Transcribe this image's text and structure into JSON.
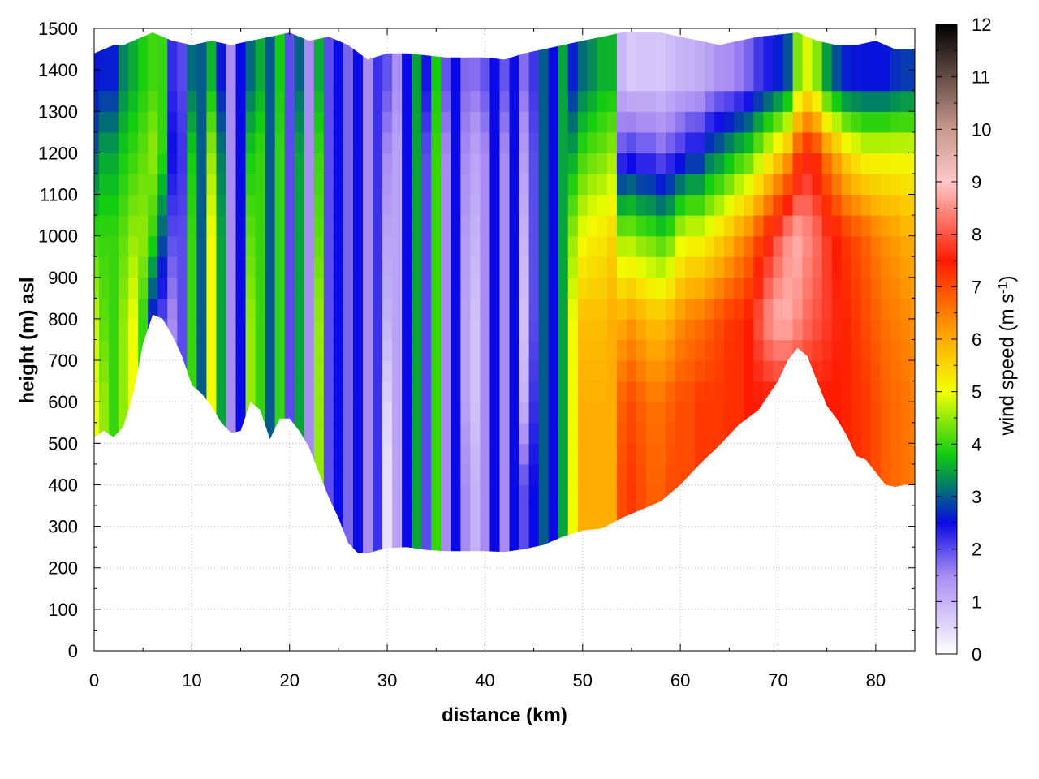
{
  "chart_data": {
    "type": "heatmap",
    "title": "",
    "xlabel": "distance (km)",
    "ylabel": "height (m) asl",
    "xlim": [
      0,
      84
    ],
    "ylim": [
      0,
      1500
    ],
    "x_ticks": [
      0,
      10,
      20,
      30,
      40,
      50,
      60,
      70,
      80
    ],
    "y_ticks": [
      0,
      100,
      200,
      300,
      400,
      500,
      600,
      700,
      800,
      900,
      1000,
      1100,
      1200,
      1300,
      1400,
      1500
    ],
    "grid": true,
    "colorbar": {
      "label": "wind speed (m s",
      "label_sup": "-1",
      "label_close": ")",
      "range": [
        0,
        12
      ],
      "ticks": [
        0,
        1,
        2,
        3,
        4,
        5,
        6,
        7,
        8,
        9,
        10,
        11,
        12
      ],
      "palette": [
        {
          "v": 0,
          "color": "#ffffff"
        },
        {
          "v": 1.5,
          "color": "#a98cf2"
        },
        {
          "v": 2.5,
          "color": "#0a0ae6"
        },
        {
          "v": 3.2,
          "color": "#007a6a"
        },
        {
          "v": 3.8,
          "color": "#11cc11"
        },
        {
          "v": 5,
          "color": "#f2ff00"
        },
        {
          "v": 6,
          "color": "#ffae00"
        },
        {
          "v": 7.5,
          "color": "#ff1a00"
        },
        {
          "v": 9,
          "color": "#ffc8c8"
        },
        {
          "v": 10,
          "color": "#c89a8c"
        },
        {
          "v": 12,
          "color": "#000000"
        }
      ]
    },
    "terrain": {
      "x": [
        0,
        1,
        2,
        3,
        4,
        5,
        6,
        7,
        8,
        9,
        10,
        11,
        12,
        13,
        14,
        15,
        16,
        17,
        18,
        19,
        20,
        21,
        22,
        23,
        24,
        25,
        26,
        27,
        28,
        30,
        32,
        34,
        36,
        38,
        40,
        42,
        44,
        46,
        48,
        50,
        52,
        54,
        56,
        58,
        60,
        62,
        64,
        66,
        68,
        70,
        71,
        72,
        73,
        74,
        75,
        76,
        77,
        78,
        79,
        80,
        81,
        82,
        83,
        84
      ],
      "y": [
        515,
        530,
        515,
        540,
        620,
        740,
        810,
        800,
        760,
        710,
        640,
        620,
        590,
        550,
        525,
        530,
        600,
        580,
        510,
        560,
        560,
        530,
        490,
        430,
        370,
        320,
        260,
        235,
        235,
        248,
        250,
        243,
        240,
        240,
        240,
        238,
        245,
        255,
        275,
        290,
        295,
        320,
        340,
        360,
        400,
        450,
        495,
        545,
        580,
        650,
        700,
        730,
        710,
        650,
        590,
        560,
        520,
        470,
        460,
        430,
        400,
        395,
        400,
        400
      ]
    },
    "top": {
      "x": [
        0,
        1,
        2,
        3,
        4,
        5,
        6,
        7,
        8,
        10,
        12,
        14,
        16,
        18,
        20,
        22,
        24,
        26,
        28,
        30,
        32,
        34,
        36,
        38,
        40,
        42,
        44,
        46,
        48,
        50,
        52,
        54,
        56,
        58,
        60,
        62,
        64,
        66,
        68,
        70,
        72,
        74,
        76,
        78,
        80,
        82,
        84
      ],
      "y": [
        1440,
        1450,
        1460,
        1460,
        1470,
        1480,
        1490,
        1480,
        1470,
        1460,
        1470,
        1460,
        1470,
        1480,
        1490,
        1470,
        1480,
        1460,
        1425,
        1440,
        1440,
        1435,
        1430,
        1430,
        1430,
        1425,
        1440,
        1450,
        1460,
        1470,
        1480,
        1490,
        1490,
        1490,
        1480,
        1470,
        1460,
        1470,
        1480,
        1485,
        1490,
        1470,
        1460,
        1460,
        1470,
        1450,
        1450
      ]
    },
    "wind_speed_columns": {
      "x": [
        0,
        1,
        2,
        3,
        4,
        5,
        6,
        7,
        8,
        9,
        10,
        11,
        12,
        13,
        14,
        15,
        16,
        17,
        18,
        19,
        20,
        21,
        22,
        23,
        24,
        25,
        26,
        27,
        28,
        29,
        30,
        31,
        32,
        33,
        34,
        35,
        36,
        37,
        38,
        39,
        40,
        41,
        42,
        43,
        44,
        45,
        46,
        47,
        48,
        49,
        50,
        51,
        52,
        53,
        54,
        55,
        56,
        57,
        58,
        59,
        60,
        61,
        62,
        63,
        64,
        65,
        66,
        67,
        68,
        69,
        70,
        71,
        72,
        73,
        74,
        75,
        76,
        77,
        78,
        79,
        80,
        81,
        82,
        83,
        84
      ],
      "levels_m": [
        200,
        400,
        600,
        800,
        1000,
        1200,
        1400
      ],
      "speed": [
        [
          5,
          5,
          5,
          4.8,
          4,
          3,
          2.5
        ],
        [
          4.5,
          4.5,
          4.5,
          4.2,
          4,
          3.5,
          2.5
        ],
        [
          4,
          4,
          4,
          4,
          4,
          3.5,
          2.5
        ],
        [
          4.5,
          4.5,
          4.5,
          4.5,
          4.2,
          3.8,
          3.2
        ],
        [
          5,
          5,
          5,
          5,
          4.5,
          4,
          3.5
        ],
        [
          4,
          4,
          4,
          4,
          4.5,
          4.2,
          3.8
        ],
        [
          2.5,
          2.5,
          2.5,
          2.5,
          4,
          4.5,
          4
        ],
        [
          2,
          2,
          2,
          2,
          3,
          4,
          4
        ],
        [
          1.5,
          1.5,
          1.5,
          1.5,
          2,
          2.5,
          2.2
        ],
        [
          2,
          2,
          2,
          2,
          2,
          2.2,
          2
        ],
        [
          4,
          4,
          4,
          4,
          4,
          3.8,
          3
        ],
        [
          3,
          3,
          3,
          3,
          3,
          3,
          3
        ],
        [
          5,
          5,
          5,
          5,
          5,
          4.5,
          3.5
        ],
        [
          3.5,
          3.5,
          3.5,
          3.5,
          3.5,
          3.2,
          2.5
        ],
        [
          1.5,
          1.5,
          1.5,
          1.5,
          1.5,
          1.5,
          1.5
        ],
        [
          2.5,
          2.5,
          2.5,
          2.5,
          2.5,
          2.5,
          2.5
        ],
        [
          4.5,
          4.5,
          4.5,
          4.5,
          4.2,
          3.8,
          3
        ],
        [
          4,
          4,
          4,
          4,
          4,
          4,
          3.5
        ],
        [
          3,
          3,
          3,
          3,
          3,
          3,
          3
        ],
        [
          4,
          4,
          4,
          4,
          4,
          4,
          3.8
        ],
        [
          2,
          2,
          2,
          2,
          2,
          2,
          2
        ],
        [
          3.5,
          3.5,
          3.5,
          3.5,
          3.5,
          3.5,
          3
        ],
        [
          1.5,
          1.5,
          1.5,
          1.5,
          1.5,
          1.5,
          1.5
        ],
        [
          4.5,
          4.5,
          4.5,
          4.5,
          4.2,
          4,
          3.5
        ],
        [
          2,
          2,
          2,
          2,
          2,
          2,
          2
        ],
        [
          2.5,
          2.5,
          2.5,
          2.5,
          2.5,
          2.5,
          2.5
        ],
        [
          1.8,
          1.8,
          1.8,
          1.8,
          1.8,
          1.8,
          1.8
        ],
        [
          2.5,
          2.5,
          2.5,
          2.5,
          2.5,
          2.5,
          2.5
        ],
        [
          1.5,
          1.5,
          1.5,
          1.5,
          1.5,
          1.5,
          1.5
        ],
        [
          2.2,
          2.2,
          2.2,
          2.2,
          2.2,
          2.2,
          2.2
        ],
        [
          0.4,
          0.4,
          0.6,
          1,
          1.2,
          1.5,
          2
        ],
        [
          1.2,
          1.2,
          1.2,
          1.2,
          1.2,
          1.2,
          1.5
        ],
        [
          2.5,
          2.5,
          2.5,
          2.5,
          2.5,
          2.5,
          2.5
        ],
        [
          3.5,
          3.5,
          3.5,
          3.5,
          3.5,
          3.5,
          3.5
        ],
        [
          2,
          2,
          2,
          2,
          2,
          2,
          2.5
        ],
        [
          4,
          4,
          4,
          4,
          4,
          4,
          3.8
        ],
        [
          1.5,
          1.5,
          1.5,
          1.5,
          1.5,
          1.5,
          2
        ],
        [
          2.5,
          2.5,
          2.5,
          2.5,
          2.5,
          2.5,
          2.5
        ],
        [
          1.5,
          1.5,
          1.2,
          1.2,
          1.3,
          1.5,
          1.8
        ],
        [
          1,
          1,
          0.8,
          0.8,
          1,
          1.2,
          1.8
        ],
        [
          1.5,
          1.5,
          1.5,
          1.5,
          1.5,
          1.5,
          2
        ],
        [
          2.5,
          2.5,
          2.5,
          2.5,
          2.5,
          2.5,
          2.5
        ],
        [
          1.5,
          1.5,
          1.5,
          1.5,
          1.5,
          1.5,
          2
        ],
        [
          2.5,
          2.5,
          2.5,
          2.5,
          2.5,
          2.5,
          2.5
        ],
        [
          2,
          2,
          1,
          0.8,
          1,
          1.3,
          1.8
        ],
        [
          2.5,
          2.5,
          2.2,
          2,
          2,
          2,
          2.2
        ],
        [
          3,
          3,
          3,
          3,
          3,
          3,
          3
        ],
        [
          2.5,
          2.5,
          2.5,
          2.5,
          2.5,
          2.5,
          2.5
        ],
        [
          3.5,
          3.5,
          3.5,
          3.5,
          3.5,
          3.5,
          3.5
        ],
        [
          5,
          5,
          5,
          5,
          4.5,
          3.5,
          2.5
        ],
        [
          6,
          6,
          6,
          5.8,
          5,
          4,
          3
        ],
        [
          6,
          6,
          6,
          5.8,
          5.2,
          4.2,
          3.2
        ],
        [
          6,
          6,
          6,
          5.8,
          5.3,
          4.3,
          3.5
        ],
        [
          6,
          6,
          6,
          6,
          5.5,
          4.5,
          3.5
        ],
        [
          7,
          7,
          6.8,
          6,
          4.5,
          2,
          0.8
        ],
        [
          7.2,
          7.2,
          7,
          6.2,
          4.5,
          2.2,
          0.5
        ],
        [
          7,
          7,
          6.8,
          6,
          4.3,
          2,
          0.6
        ],
        [
          6.8,
          6.8,
          6.6,
          5.8,
          4.2,
          2,
          0.6
        ],
        [
          6.8,
          6.8,
          6.6,
          5.8,
          4,
          1.8,
          0.6
        ],
        [
          7,
          7,
          6.8,
          6,
          4.2,
          2,
          0.7
        ],
        [
          7,
          7,
          7,
          6.3,
          4.8,
          2.2,
          0.8
        ],
        [
          7,
          7,
          7,
          6.5,
          5,
          2.5,
          0.8
        ],
        [
          7.2,
          7.2,
          7.2,
          6.6,
          5,
          2.5,
          0.9
        ],
        [
          7.2,
          7.2,
          7.2,
          6.8,
          5.2,
          3,
          1
        ],
        [
          7.2,
          7.2,
          7.2,
          7,
          5.5,
          3.2,
          1.2
        ],
        [
          7.3,
          7.3,
          7.3,
          7.2,
          5.8,
          3.5,
          1.2
        ],
        [
          7.3,
          7.3,
          7.3,
          7.3,
          6.2,
          3.8,
          1.3
        ],
        [
          7.5,
          7.5,
          7.5,
          7.5,
          6.5,
          4,
          1.5
        ],
        [
          7.5,
          7.5,
          7.5,
          8,
          7,
          4.5,
          1.8
        ],
        [
          7.5,
          7.5,
          7.5,
          8.5,
          7.5,
          5,
          2
        ],
        [
          7.5,
          7.5,
          7.5,
          8.8,
          8,
          5.5,
          2.2
        ],
        [
          7.5,
          7.5,
          7.5,
          8.8,
          8.5,
          6,
          2.5
        ],
        [
          7.5,
          7.5,
          7.5,
          8.5,
          8.8,
          7,
          4
        ],
        [
          7.5,
          7.5,
          7.5,
          8.2,
          8.5,
          7.5,
          4.5
        ],
        [
          7.5,
          7.5,
          7.5,
          8,
          8.2,
          7.2,
          4
        ],
        [
          7.5,
          7.5,
          7.5,
          7.8,
          7.8,
          6.5,
          3
        ],
        [
          7.5,
          7.5,
          7.5,
          7.6,
          7.5,
          6,
          2.5
        ],
        [
          7.4,
          7.4,
          7.4,
          7.4,
          7.2,
          5.5,
          2.2
        ],
        [
          7.3,
          7.3,
          7.3,
          7.2,
          7,
          5.2,
          2.2
        ],
        [
          7.2,
          7.2,
          7.2,
          7,
          6.8,
          5,
          2.2
        ],
        [
          7,
          7,
          7,
          6.8,
          6.5,
          5,
          2.2
        ],
        [
          6.8,
          6.8,
          6.8,
          6.6,
          6.3,
          5,
          2.2
        ],
        [
          6.7,
          6.7,
          6.7,
          6.5,
          6.2,
          5,
          2.4
        ],
        [
          6.6,
          6.6,
          6.6,
          6.4,
          6,
          5,
          2.5
        ],
        [
          6.5,
          6.5,
          6.5,
          6.3,
          6,
          5,
          2.5
        ]
      ]
    }
  }
}
